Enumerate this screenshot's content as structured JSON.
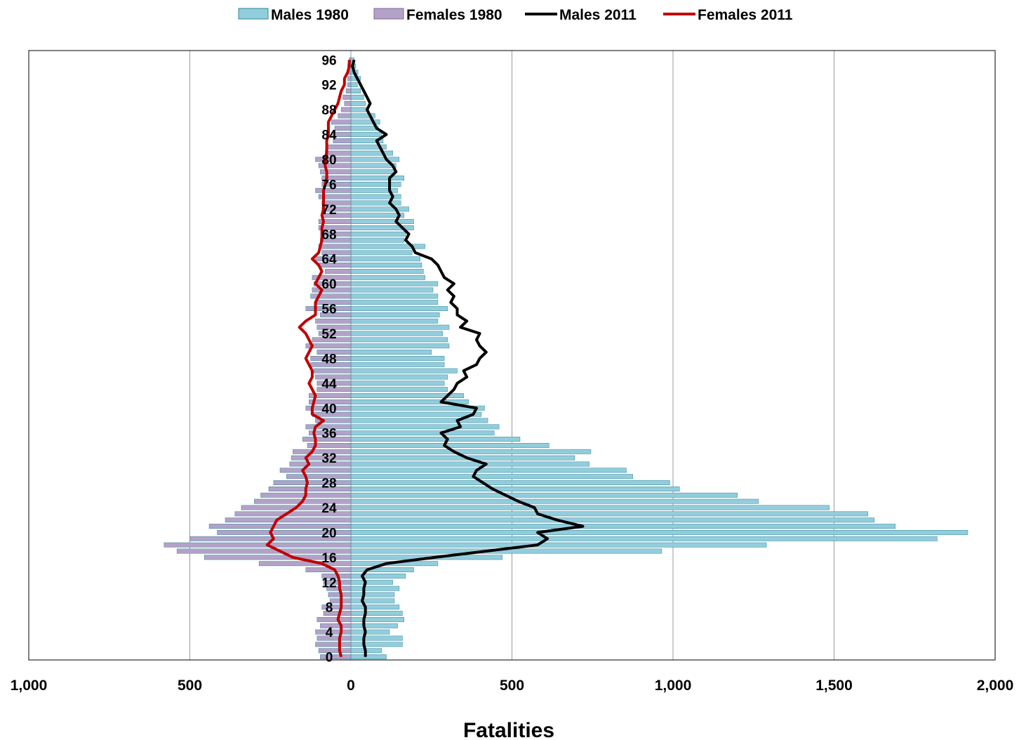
{
  "chart_data": {
    "type": "bar",
    "orientation": "horizontal-population-pyramid",
    "title": "",
    "xlabel": "Fatalities",
    "ylabel": "",
    "x_tick_labels": [
      "1,000",
      "500",
      "0",
      "500",
      "1,000",
      "1,500",
      "2,000"
    ],
    "x_ticks": [
      -1000,
      -500,
      0,
      500,
      1000,
      1500,
      2000
    ],
    "xlim": [
      -1000,
      2000
    ],
    "ages": [
      0,
      1,
      2,
      3,
      4,
      5,
      6,
      7,
      8,
      9,
      10,
      11,
      12,
      13,
      14,
      15,
      16,
      17,
      18,
      19,
      20,
      21,
      22,
      23,
      24,
      25,
      26,
      27,
      28,
      29,
      30,
      31,
      32,
      33,
      34,
      35,
      36,
      37,
      38,
      39,
      40,
      41,
      42,
      43,
      44,
      45,
      46,
      47,
      48,
      49,
      50,
      51,
      52,
      53,
      54,
      55,
      56,
      57,
      58,
      59,
      60,
      61,
      62,
      63,
      64,
      65,
      66,
      67,
      68,
      69,
      70,
      71,
      72,
      73,
      74,
      75,
      76,
      77,
      78,
      79,
      80,
      81,
      82,
      83,
      84,
      85,
      86,
      87,
      88,
      89,
      90,
      91,
      92,
      93,
      94,
      95,
      96
    ],
    "y_tick_labels": [
      "0",
      "4",
      "8",
      "12",
      "16",
      "20",
      "24",
      "28",
      "32",
      "36",
      "40",
      "44",
      "48",
      "52",
      "56",
      "60",
      "64",
      "68",
      "72",
      "76",
      "80",
      "84",
      "88",
      "92",
      "96"
    ],
    "grid": true,
    "legend_position": "top",
    "series": [
      {
        "name": "Males 1980",
        "kind": "bar",
        "color": "#92cddc",
        "values": [
          110,
          95,
          160,
          160,
          120,
          145,
          165,
          160,
          150,
          135,
          135,
          150,
          130,
          170,
          195,
          270,
          470,
          965,
          1290,
          1820,
          1915,
          1690,
          1625,
          1605,
          1485,
          1265,
          1200,
          1020,
          990,
          875,
          855,
          740,
          695,
          745,
          615,
          525,
          445,
          460,
          425,
          405,
          415,
          365,
          350,
          300,
          290,
          300,
          330,
          290,
          290,
          250,
          305,
          300,
          285,
          305,
          270,
          275,
          300,
          270,
          270,
          255,
          270,
          230,
          225,
          220,
          215,
          190,
          230,
          165,
          170,
          195,
          195,
          165,
          180,
          155,
          155,
          145,
          155,
          165,
          135,
          140,
          150,
          130,
          110,
          100,
          95,
          85,
          90,
          75,
          55,
          45,
          40,
          30,
          20,
          30,
          22,
          15,
          10
        ]
      },
      {
        "name": "Females 1980",
        "kind": "bar",
        "color": "#b3a2c7",
        "values": [
          -95,
          -100,
          -110,
          -105,
          -110,
          -95,
          -105,
          -85,
          -90,
          -65,
          -70,
          -75,
          -85,
          -90,
          -140,
          -285,
          -455,
          -540,
          -580,
          -500,
          -415,
          -440,
          -390,
          -360,
          -340,
          -300,
          -280,
          -255,
          -240,
          -200,
          -220,
          -190,
          -185,
          -180,
          -135,
          -150,
          -130,
          -140,
          -110,
          -120,
          -140,
          -130,
          -130,
          -105,
          -105,
          -110,
          -115,
          -125,
          -125,
          -105,
          -140,
          -120,
          -100,
          -105,
          -110,
          -95,
          -140,
          -105,
          -125,
          -120,
          -115,
          -120,
          -80,
          -100,
          -110,
          -90,
          -100,
          -95,
          -90,
          -100,
          -100,
          -90,
          -90,
          -90,
          -100,
          -110,
          -90,
          -90,
          -95,
          -100,
          -110,
          -80,
          -75,
          -55,
          -60,
          -50,
          -60,
          -40,
          -30,
          -20,
          -25,
          -15,
          -10,
          -10,
          -10,
          -10,
          -5
        ]
      },
      {
        "name": "Males 2011",
        "kind": "line",
        "color": "#000000",
        "values": [
          45,
          45,
          40,
          40,
          45,
          40,
          40,
          45,
          45,
          35,
          40,
          40,
          45,
          35,
          50,
          110,
          260,
          420,
          580,
          610,
          580,
          720,
          640,
          580,
          570,
          520,
          480,
          440,
          410,
          380,
          390,
          420,
          360,
          320,
          290,
          300,
          280,
          340,
          330,
          380,
          390,
          280,
          300,
          320,
          330,
          360,
          350,
          390,
          400,
          420,
          400,
          390,
          400,
          340,
          360,
          330,
          330,
          310,
          320,
          300,
          320,
          290,
          280,
          270,
          250,
          200,
          190,
          170,
          180,
          160,
          140,
          150,
          140,
          120,
          130,
          120,
          120,
          120,
          140,
          130,
          110,
          100,
          90,
          80,
          110,
          80,
          70,
          60,
          50,
          60,
          50,
          40,
          30,
          20,
          10,
          5,
          10
        ]
      },
      {
        "name": "Females 2011",
        "kind": "line",
        "color": "#c00000",
        "values": [
          -30,
          -35,
          -35,
          -35,
          -30,
          -30,
          -40,
          -35,
          -30,
          -30,
          -30,
          -35,
          -35,
          -40,
          -50,
          -90,
          -180,
          -220,
          -260,
          -240,
          -250,
          -240,
          -230,
          -200,
          -170,
          -150,
          -140,
          -140,
          -135,
          -140,
          -150,
          -130,
          -140,
          -120,
          -110,
          -110,
          -115,
          -110,
          -85,
          -120,
          -120,
          -115,
          -110,
          -120,
          -130,
          -120,
          -120,
          -130,
          -140,
          -130,
          -120,
          -130,
          -140,
          -160,
          -140,
          -110,
          -110,
          -110,
          -100,
          -90,
          -110,
          -100,
          -90,
          -100,
          -120,
          -100,
          -95,
          -90,
          -90,
          -90,
          -85,
          -90,
          -85,
          -85,
          -85,
          -85,
          -80,
          -75,
          -75,
          -80,
          -80,
          -75,
          -75,
          -75,
          -70,
          -70,
          -70,
          -60,
          -50,
          -40,
          -35,
          -30,
          -20,
          -20,
          -10,
          -5,
          -5
        ]
      }
    ]
  }
}
